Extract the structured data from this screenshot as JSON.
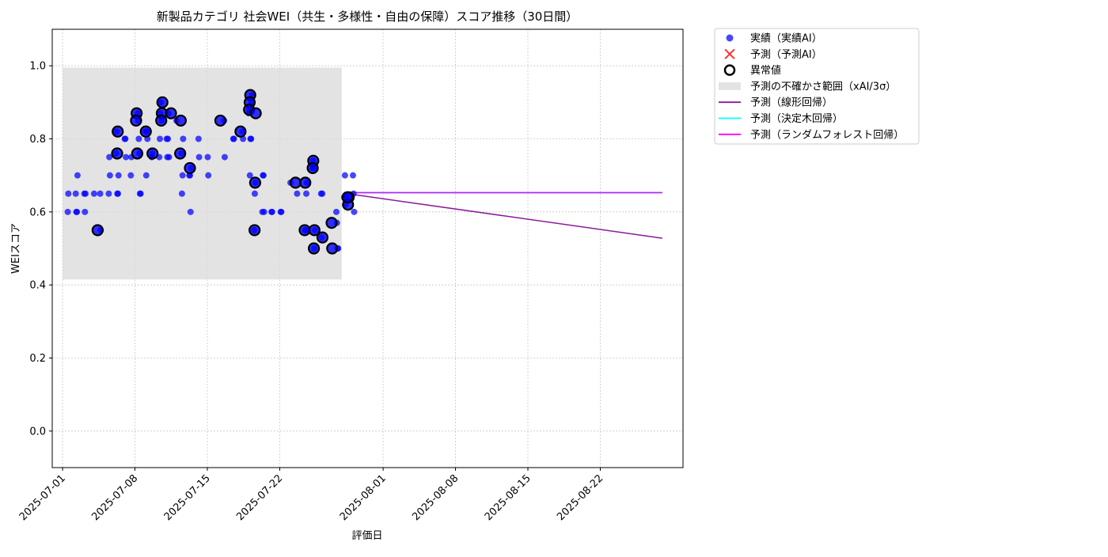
{
  "chart_data": {
    "type": "scatter",
    "title": "新製品カテゴリ 社会WEI（共生・多様性・自由の保障）スコア推移（30日間）",
    "xlabel": "評価日",
    "ylabel": "WEIスコア",
    "xlim": [
      "2025-06-30",
      "2025-08-30"
    ],
    "ylim": [
      -0.1,
      1.1
    ],
    "x_ticks": [
      "2025-07-01",
      "2025-07-08",
      "2025-07-15",
      "2025-07-22",
      "2025-08-01",
      "2025-08-08",
      "2025-08-15",
      "2025-08-22"
    ],
    "y_ticks": [
      "0.0",
      "0.2",
      "0.4",
      "0.6",
      "0.8",
      "1.0"
    ],
    "grid": true,
    "legend_position": "outside-top-right",
    "colors": {
      "actual": "#0000ff",
      "predicted": "#ff0000",
      "anomaly_edge": "#000000",
      "band": "#d9d9d9",
      "linear": "#8b1a9b",
      "tree": "#00ffff",
      "forest": "#ff00ff",
      "grid": "#c8c8c8"
    },
    "legend": [
      {
        "key": "actual",
        "label": "実績（実績AI）"
      },
      {
        "key": "predicted",
        "label": "予測（予測AI）"
      },
      {
        "key": "anomaly",
        "label": "異常値"
      },
      {
        "key": "band",
        "label": "予測の不確かさ範囲（xAI/3σ）"
      },
      {
        "key": "linear",
        "label": "予測（線形回帰）"
      },
      {
        "key": "tree",
        "label": "予測（決定木回帰）"
      },
      {
        "key": "forest",
        "label": "予測（ランダムフォレスト回帰）"
      }
    ],
    "uncertainty_band": {
      "x_start": "2025-07-01",
      "x_end": "2025-07-28",
      "y_low": 0.415,
      "y_high": 0.995
    },
    "actual_points": [
      [
        "2025-07-01",
        0.65
      ],
      [
        "2025-07-01",
        0.6
      ],
      [
        "2025-07-02",
        0.7
      ],
      [
        "2025-07-02",
        0.6
      ],
      [
        "2025-07-02",
        0.6
      ],
      [
        "2025-07-02",
        0.65
      ],
      [
        "2025-07-03",
        0.65
      ],
      [
        "2025-07-03",
        0.6
      ],
      [
        "2025-07-03",
        0.65
      ],
      [
        "2025-07-04",
        0.65
      ],
      [
        "2025-07-04",
        0.55
      ],
      [
        "2025-07-04",
        0.65
      ],
      [
        "2025-07-05",
        0.7
      ],
      [
        "2025-07-05",
        0.75
      ],
      [
        "2025-07-05",
        0.65
      ],
      [
        "2025-07-06",
        0.7
      ],
      [
        "2025-07-06",
        0.65
      ],
      [
        "2025-07-06",
        0.65
      ],
      [
        "2025-07-06",
        0.82
      ],
      [
        "2025-07-06",
        0.76
      ],
      [
        "2025-07-07",
        0.75
      ],
      [
        "2025-07-07",
        0.8
      ],
      [
        "2025-07-07",
        0.8
      ],
      [
        "2025-07-07",
        0.75
      ],
      [
        "2025-07-07",
        0.7
      ],
      [
        "2025-07-08",
        0.65
      ],
      [
        "2025-07-08",
        0.65
      ],
      [
        "2025-07-08",
        0.76
      ],
      [
        "2025-07-08",
        0.8
      ],
      [
        "2025-07-08",
        0.85
      ],
      [
        "2025-07-08",
        0.87
      ],
      [
        "2025-07-09",
        0.8
      ],
      [
        "2025-07-09",
        0.82
      ],
      [
        "2025-07-09",
        0.7
      ],
      [
        "2025-07-09",
        0.82
      ],
      [
        "2025-07-09",
        0.76
      ],
      [
        "2025-07-09",
        0.75
      ],
      [
        "2025-07-10",
        0.85
      ],
      [
        "2025-07-10",
        0.9
      ],
      [
        "2025-07-10",
        0.87
      ],
      [
        "2025-07-10",
        0.8
      ],
      [
        "2025-07-10",
        0.75
      ],
      [
        "2025-07-11",
        0.75
      ],
      [
        "2025-07-11",
        0.87
      ],
      [
        "2025-07-11",
        0.8
      ],
      [
        "2025-07-11",
        0.75
      ],
      [
        "2025-07-11",
        0.8
      ],
      [
        "2025-07-12",
        0.85
      ],
      [
        "2025-07-12",
        0.8
      ],
      [
        "2025-07-12",
        0.7
      ],
      [
        "2025-07-12",
        0.65
      ],
      [
        "2025-07-12",
        0.76
      ],
      [
        "2025-07-13",
        0.72
      ],
      [
        "2025-07-13",
        0.6
      ],
      [
        "2025-07-13",
        0.7
      ],
      [
        "2025-07-13",
        0.7
      ],
      [
        "2025-07-14",
        0.75
      ],
      [
        "2025-07-14",
        0.8
      ],
      [
        "2025-07-15",
        0.7
      ],
      [
        "2025-07-15",
        0.75
      ],
      [
        "2025-07-16",
        0.75
      ],
      [
        "2025-07-16",
        0.85
      ],
      [
        "2025-07-17",
        0.8
      ],
      [
        "2025-07-17",
        0.8
      ],
      [
        "2025-07-18",
        0.8
      ],
      [
        "2025-07-18",
        0.82
      ],
      [
        "2025-07-19",
        0.92
      ],
      [
        "2025-07-19",
        0.9
      ],
      [
        "2025-07-19",
        0.8
      ],
      [
        "2025-07-19",
        0.8
      ],
      [
        "2025-07-19",
        0.7
      ],
      [
        "2025-07-19",
        0.88
      ],
      [
        "2025-07-19",
        0.87
      ],
      [
        "2025-07-19",
        0.68
      ],
      [
        "2025-07-19",
        0.65
      ],
      [
        "2025-07-19",
        0.55
      ],
      [
        "2025-07-20",
        0.6
      ],
      [
        "2025-07-20",
        0.7
      ],
      [
        "2025-07-20",
        0.7
      ],
      [
        "2025-07-20",
        0.6
      ],
      [
        "2025-07-21",
        0.6
      ],
      [
        "2025-07-21",
        0.6
      ],
      [
        "2025-07-22",
        0.6
      ],
      [
        "2025-07-22",
        0.6
      ],
      [
        "2025-07-23",
        0.68
      ],
      [
        "2025-07-23",
        0.65
      ],
      [
        "2025-07-24",
        0.68
      ],
      [
        "2025-07-24",
        0.65
      ],
      [
        "2025-07-24",
        0.55
      ],
      [
        "2025-07-24",
        0.55
      ],
      [
        "2025-07-25",
        0.55
      ],
      [
        "2025-07-25",
        0.5
      ],
      [
        "2025-07-25",
        0.72
      ],
      [
        "2025-07-25",
        0.74
      ],
      [
        "2025-07-25",
        0.72
      ],
      [
        "2025-07-26",
        0.65
      ],
      [
        "2025-07-26",
        0.53
      ],
      [
        "2025-07-26",
        0.65
      ],
      [
        "2025-07-27",
        0.5
      ],
      [
        "2025-07-27",
        0.5
      ],
      [
        "2025-07-27",
        0.57
      ],
      [
        "2025-07-27",
        0.6
      ],
      [
        "2025-07-28",
        0.64
      ],
      [
        "2025-07-28",
        0.62
      ],
      [
        "2025-07-28",
        0.7
      ],
      [
        "2025-07-28",
        0.64
      ],
      [
        "2025-07-29",
        0.6
      ],
      [
        "2025-07-29",
        0.65
      ],
      [
        "2025-07-29",
        0.7
      ]
    ],
    "anomaly_points": [
      [
        "2025-07-04",
        0.55
      ],
      [
        "2025-07-06",
        0.82
      ],
      [
        "2025-07-06",
        0.76
      ],
      [
        "2025-07-08",
        0.76
      ],
      [
        "2025-07-08",
        0.87
      ],
      [
        "2025-07-08",
        0.85
      ],
      [
        "2025-07-09",
        0.82
      ],
      [
        "2025-07-09",
        0.76
      ],
      [
        "2025-07-10",
        0.9
      ],
      [
        "2025-07-10",
        0.87
      ],
      [
        "2025-07-10",
        0.85
      ],
      [
        "2025-07-11",
        0.87
      ],
      [
        "2025-07-12",
        0.85
      ],
      [
        "2025-07-12",
        0.76
      ],
      [
        "2025-07-13",
        0.72
      ],
      [
        "2025-07-16",
        0.85
      ],
      [
        "2025-07-18",
        0.82
      ],
      [
        "2025-07-19",
        0.92
      ],
      [
        "2025-07-19",
        0.9
      ],
      [
        "2025-07-19",
        0.88
      ],
      [
        "2025-07-19",
        0.87
      ],
      [
        "2025-07-19",
        0.68
      ],
      [
        "2025-07-19",
        0.55
      ],
      [
        "2025-07-23",
        0.68
      ],
      [
        "2025-07-24",
        0.68
      ],
      [
        "2025-07-24",
        0.55
      ],
      [
        "2025-07-25",
        0.55
      ],
      [
        "2025-07-25",
        0.5
      ],
      [
        "2025-07-25",
        0.74
      ],
      [
        "2025-07-25",
        0.72
      ],
      [
        "2025-07-26",
        0.53
      ],
      [
        "2025-07-27",
        0.5
      ],
      [
        "2025-07-27",
        0.57
      ],
      [
        "2025-07-28",
        0.64
      ],
      [
        "2025-07-28",
        0.62
      ],
      [
        "2025-07-28",
        0.64
      ]
    ],
    "series": [
      {
        "name": "予測（線形回帰）",
        "key": "linear",
        "x": [
          "2025-07-29",
          "2025-08-28"
        ],
        "values": [
          0.648,
          0.528
        ]
      },
      {
        "name": "予測（決定木回帰）",
        "key": "tree",
        "x": [
          "2025-07-29",
          "2025-08-28"
        ],
        "values": [
          0.652,
          0.652
        ]
      },
      {
        "name": "予測（ランダムフォレスト回帰）",
        "key": "forest",
        "x": [
          "2025-07-29",
          "2025-08-28"
        ],
        "values": [
          0.653,
          0.653
        ]
      }
    ]
  }
}
